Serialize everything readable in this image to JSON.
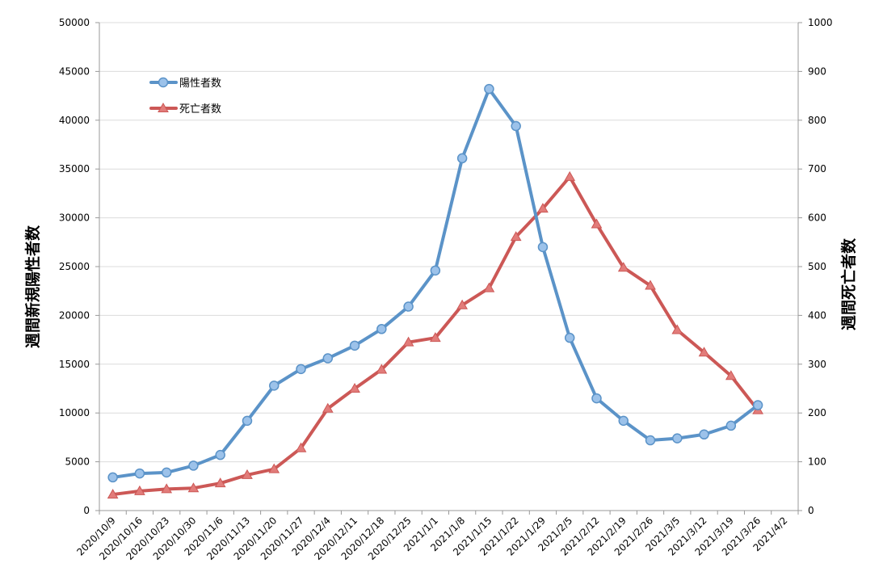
{
  "chart_data": {
    "type": "line",
    "title": "",
    "ylabel_left": "週間新規陽性者数",
    "ylabel_right": "週間死亡者数",
    "ylim_left": [
      0,
      50000
    ],
    "ylim_right": [
      0,
      1000
    ],
    "yticks_left": [
      0,
      5000,
      10000,
      15000,
      20000,
      25000,
      30000,
      35000,
      40000,
      45000,
      50000
    ],
    "yticks_right": [
      0,
      100,
      200,
      300,
      400,
      500,
      600,
      700,
      800,
      900,
      1000
    ],
    "grid": "horizontal",
    "legend_position": "top-left",
    "categories": [
      "2020/10/9",
      "2020/10/16",
      "2020/10/23",
      "2020/10/30",
      "2020/11/6",
      "2020/11/13",
      "2020/11/20",
      "2020/11/27",
      "2020/12/4",
      "2020/12/11",
      "2020/12/18",
      "2020/12/25",
      "2021/1/1",
      "2021/1/8",
      "2021/1/15",
      "2021/1/22",
      "2021/1/29",
      "2021/2/5",
      "2021/2/12",
      "2021/2/19",
      "2021/2/26",
      "2021/3/5",
      "2021/3/12",
      "2021/3/19",
      "2021/3/26",
      "2021/4/2"
    ],
    "series": [
      {
        "name": "陽性者数",
        "axis": "left",
        "color": "#5b93c8",
        "marker": "circle",
        "values": [
          3400,
          3800,
          3900,
          4600,
          5700,
          9200,
          12800,
          14500,
          15600,
          16900,
          18600,
          20900,
          24600,
          36100,
          43200,
          39400,
          27000,
          17700,
          11500,
          9200,
          7200,
          7400,
          7800,
          8700,
          10800,
          null
        ]
      },
      {
        "name": "死亡者数",
        "axis": "right",
        "color": "#cc5856",
        "marker": "triangle",
        "values": [
          33,
          40,
          44,
          46,
          56,
          73,
          85,
          128,
          209,
          250,
          289,
          345,
          354,
          421,
          456,
          561,
          619,
          684,
          587,
          498,
          461,
          370,
          324,
          276,
          206,
          null
        ]
      }
    ]
  }
}
